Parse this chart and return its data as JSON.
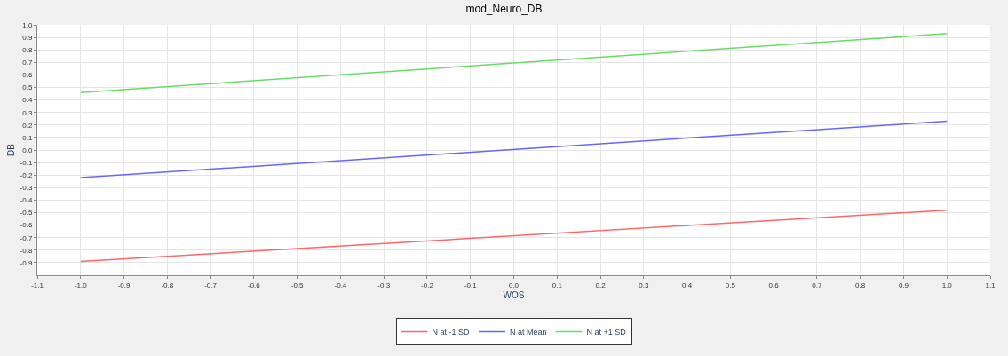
{
  "chart_data": {
    "type": "line",
    "title": "mod_Neuro_DB",
    "xlabel": "WOS",
    "ylabel": "DB",
    "x": [
      -1.0,
      1.0
    ],
    "series": [
      {
        "name": "N at -1 SD",
        "color": "#ff6666",
        "values": [
          -0.89,
          -0.48
        ]
      },
      {
        "name": "N at Mean",
        "color": "#6666ff",
        "values": [
          -0.22,
          0.23
        ]
      },
      {
        "name": "N at +1 SD",
        "color": "#66dd66",
        "values": [
          0.46,
          0.93
        ]
      }
    ],
    "xlim": [
      -1.1,
      1.1
    ],
    "xticks": [
      -1.1,
      {
        "value": -1,
        "label": "-1.0"
      },
      -0.9,
      -0.8,
      -0.7,
      -0.6,
      -0.5,
      -0.4,
      -0.3,
      -0.2,
      -0.1,
      {
        "value": 0,
        "label": "0.0"
      },
      0.1,
      0.2,
      0.3,
      0.4,
      0.5,
      0.6,
      0.7,
      0.8,
      0.9,
      {
        "value": 1,
        "label": "1.0"
      },
      1.1
    ],
    "ylim": [
      -1.0,
      1.0
    ],
    "yticks": [
      -0.9,
      -0.8,
      -0.7,
      -0.6,
      -0.5,
      -0.4,
      -0.3,
      -0.2,
      -0.1,
      {
        "value": 0,
        "label": "0.0"
      },
      0.1,
      0.2,
      0.3,
      0.4,
      0.5,
      0.6,
      0.7,
      0.8,
      0.9,
      {
        "value": 1,
        "label": "1.0"
      }
    ],
    "grid": true,
    "legend": "bottom",
    "marker": "none",
    "line_style": "solid"
  }
}
